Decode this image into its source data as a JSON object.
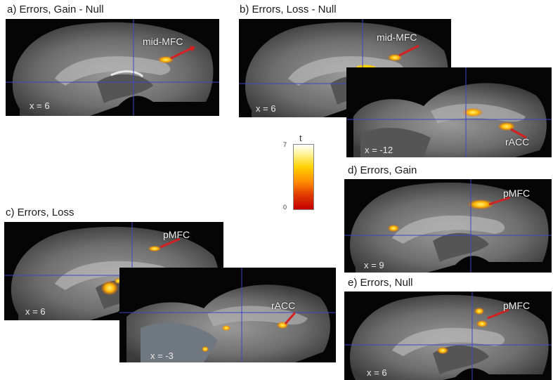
{
  "panels": [
    {
      "id": "a",
      "title": "a) Errors, Gain - Null",
      "coord": "x = 6",
      "region": "mid-MFC"
    },
    {
      "id": "b",
      "title": "b) Errors, Loss - Null",
      "coord": "x = 6",
      "region": "mid-MFC"
    },
    {
      "id": "b2",
      "coord": "x = -12",
      "region": "rACC"
    },
    {
      "id": "c",
      "title": "c) Errors, Loss",
      "coord": "x = 6",
      "region": "pMFC"
    },
    {
      "id": "c2",
      "coord": "x = -3",
      "region": "rACC"
    },
    {
      "id": "d",
      "title": "d) Errors, Gain",
      "coord": "x = 9",
      "region": "pMFC"
    },
    {
      "id": "e",
      "title": "e) Errors, Null",
      "coord": "x = 6",
      "region": "pMFC"
    }
  ],
  "colorbar": {
    "title": "t",
    "max": "7",
    "min": "0"
  },
  "colors": {
    "blob_hot": "#ffe000",
    "blob_mid": "#ff9a00",
    "arrow": "#d42020",
    "crosshair": "#3a45c8"
  }
}
